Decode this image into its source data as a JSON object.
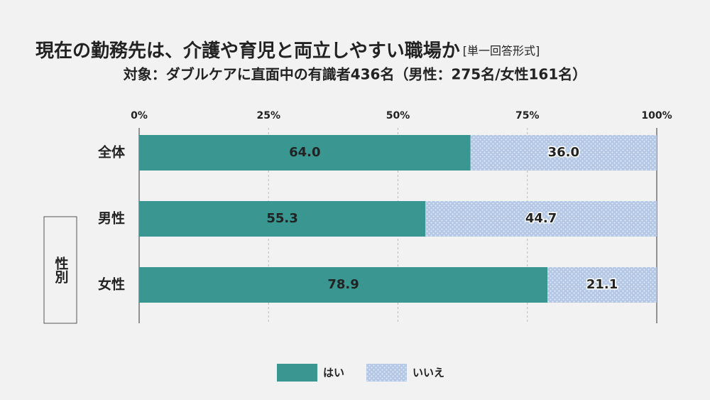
{
  "chart_data": {
    "type": "stacked-bar-horizontal",
    "title": "現在の勤務先は、介護や育児と両立しやすい職場か",
    "title_note": "[単一回答形式]",
    "subtitle": "対象：ダブルケアに直面中の有識者436名（男性：275名/女性161名）",
    "categories": [
      "全体",
      "男性",
      "女性"
    ],
    "group_label": "性別",
    "series": [
      {
        "name": "はい",
        "color": "#3a9690",
        "values": [
          64.0,
          55.3,
          78.9
        ],
        "value_labels": [
          "64.0",
          "55.3",
          "78.9"
        ]
      },
      {
        "name": "いいえ",
        "color": "#b4c8e6",
        "pattern": "dots",
        "values": [
          36.0,
          44.7,
          21.1
        ],
        "value_labels": [
          "36.0",
          "44.7",
          "21.1"
        ]
      }
    ],
    "xlim": [
      0,
      100
    ],
    "xticks": [
      {
        "value": 0,
        "label": "0%"
      },
      {
        "value": 25,
        "label": "25%"
      },
      {
        "value": 50,
        "label": "50%"
      },
      {
        "value": 75,
        "label": "75%"
      },
      {
        "value": 100,
        "label": "100%"
      }
    ],
    "grid": true
  }
}
